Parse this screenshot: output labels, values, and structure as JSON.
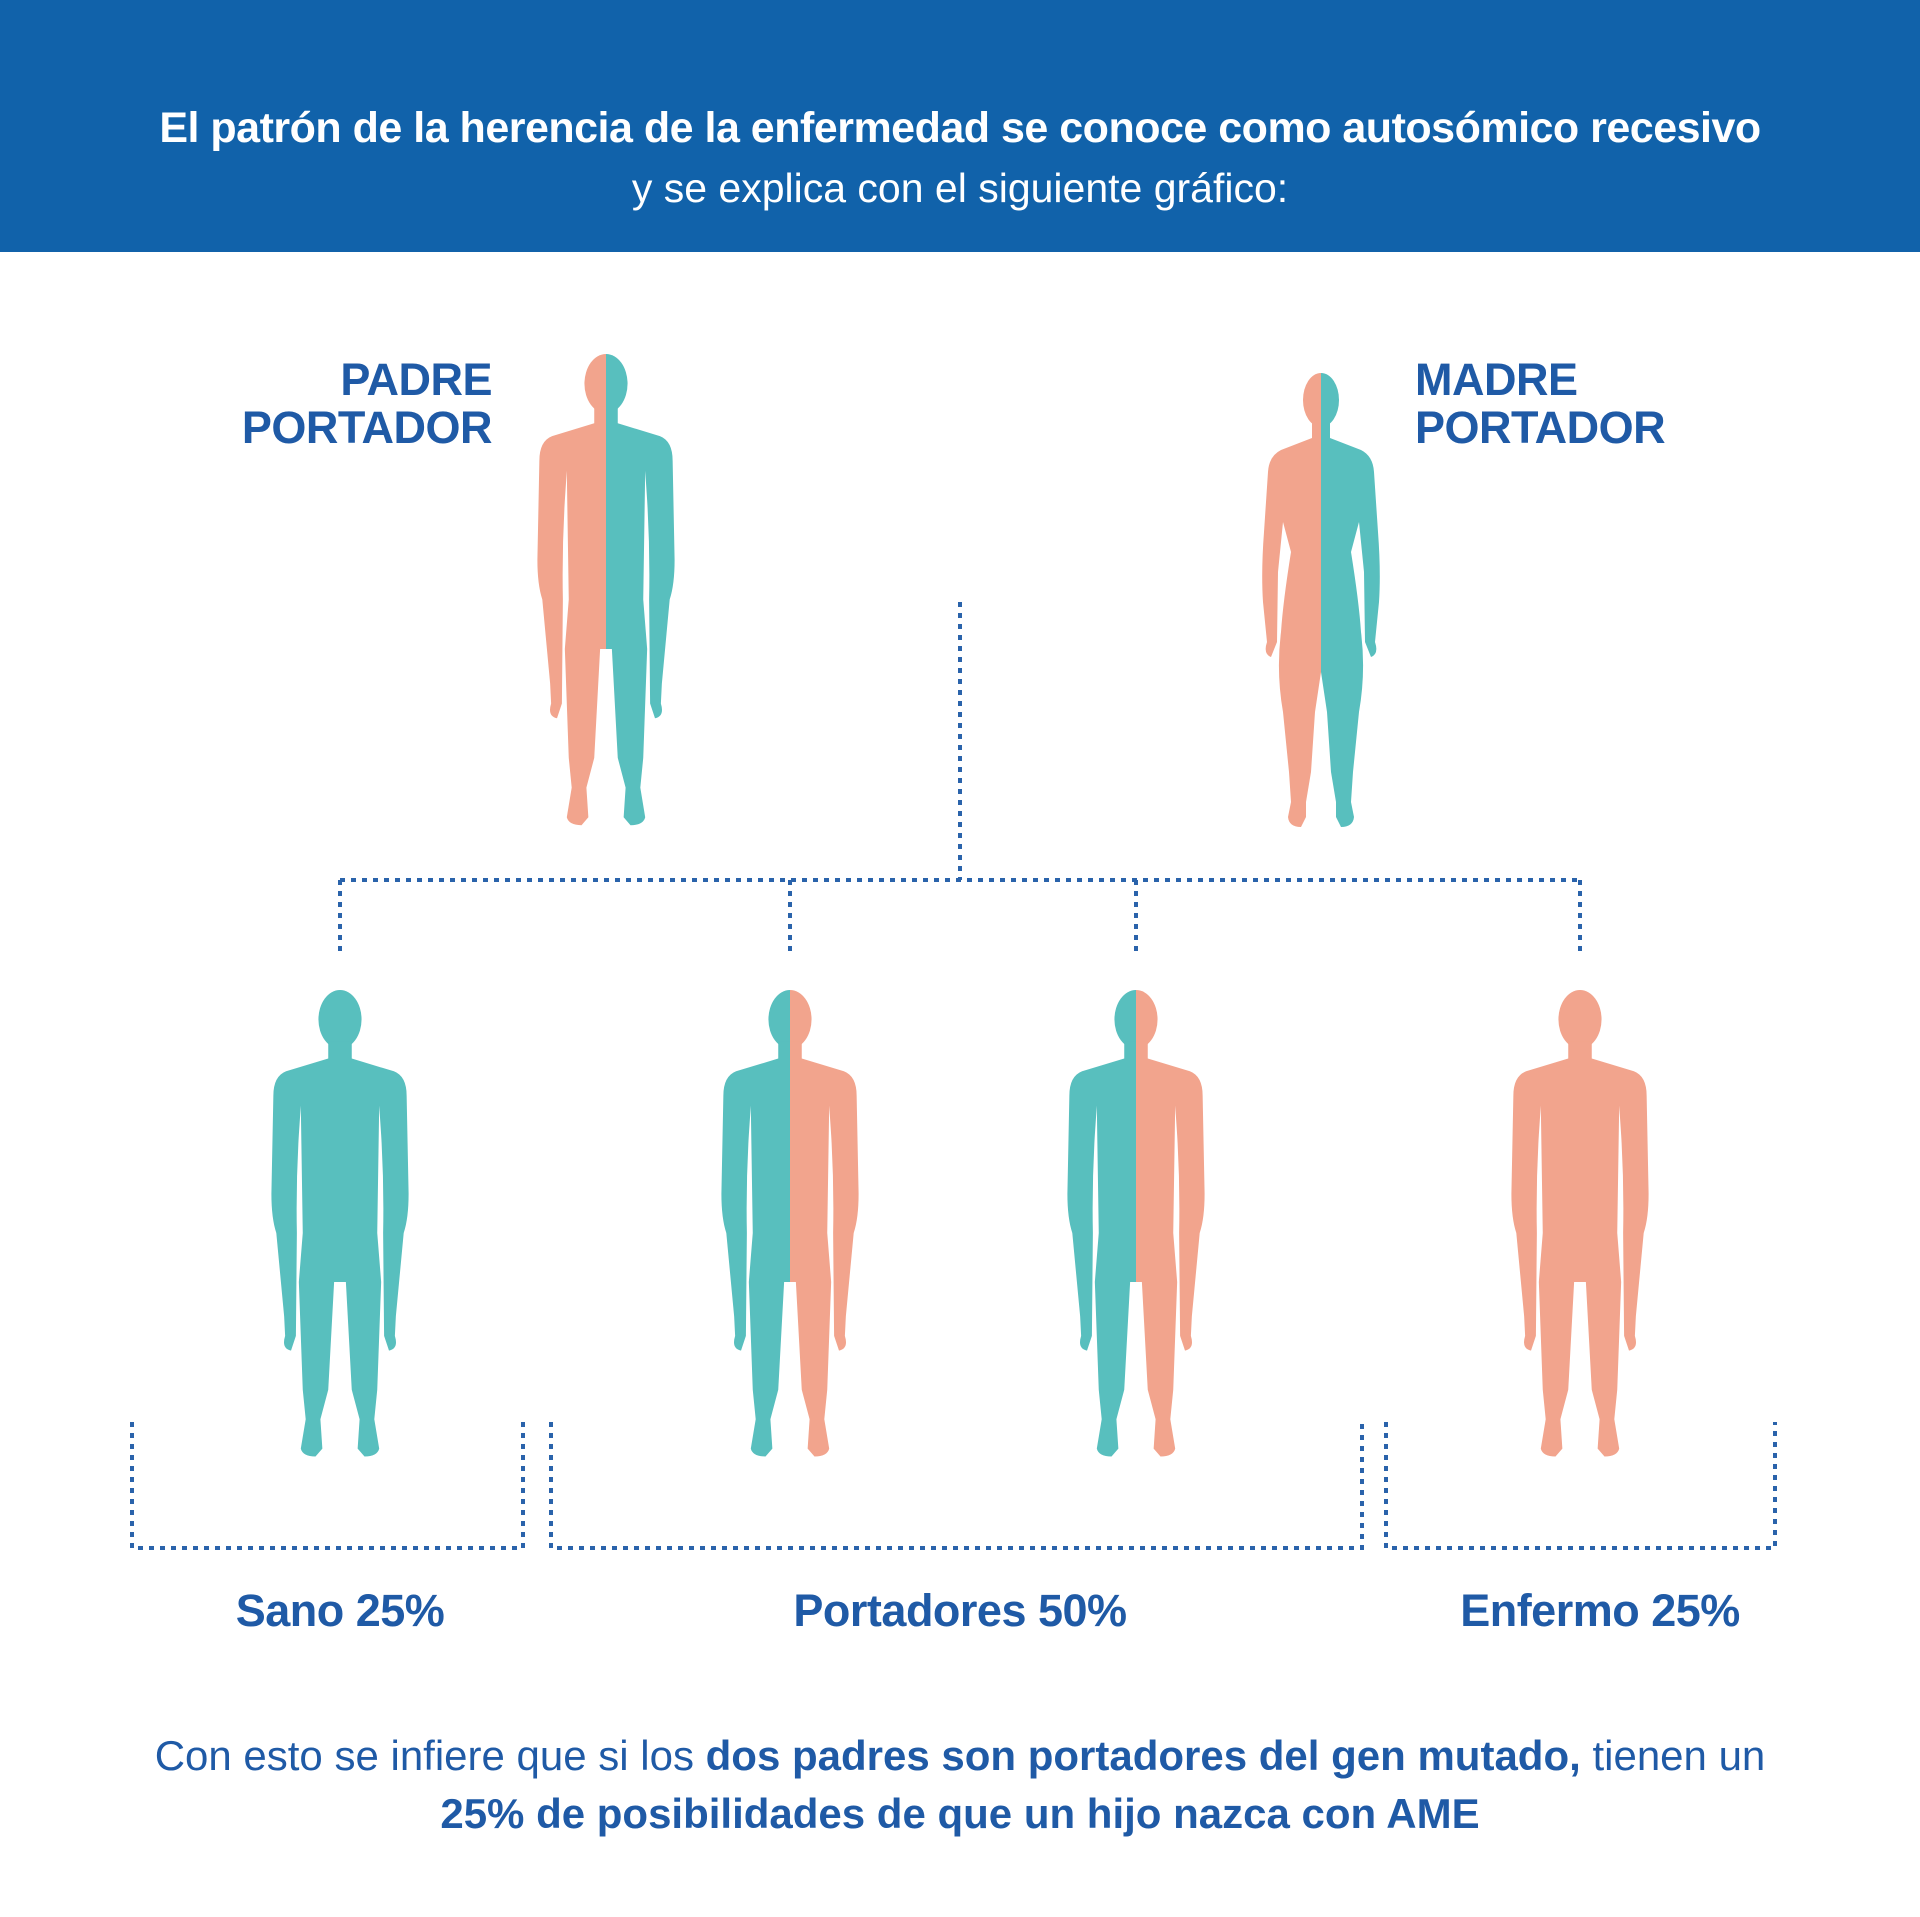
{
  "header": {
    "title": "El patrón de la herencia de la enfermedad se conoce como autosómico recesivo",
    "subtitle": "y se explica con el siguiente gráfico:"
  },
  "parents": {
    "father": {
      "line1": "PADRE",
      "line2": "PORTADOR"
    },
    "mother": {
      "line1": "MADRE",
      "line2": "PORTADOR"
    }
  },
  "outcomes": {
    "healthy": "Sano 25%",
    "carriers": "Portadores 50%",
    "affected": "Enfermo 25%"
  },
  "footer": {
    "part1": "Con esto se infiere que si los ",
    "bold1": "dos padres son portadores del gen mutado,",
    "part2": " tienen un",
    "bold2": "25% de posibilidades de que un hijo nazca con AME"
  },
  "colors": {
    "header_bg": "#1162aa",
    "label_blue": "#1f5aa6",
    "healthy_teal": "#58bfbe",
    "affected_salmon": "#f2a48d",
    "dotted_line": "#2a63ab"
  }
}
